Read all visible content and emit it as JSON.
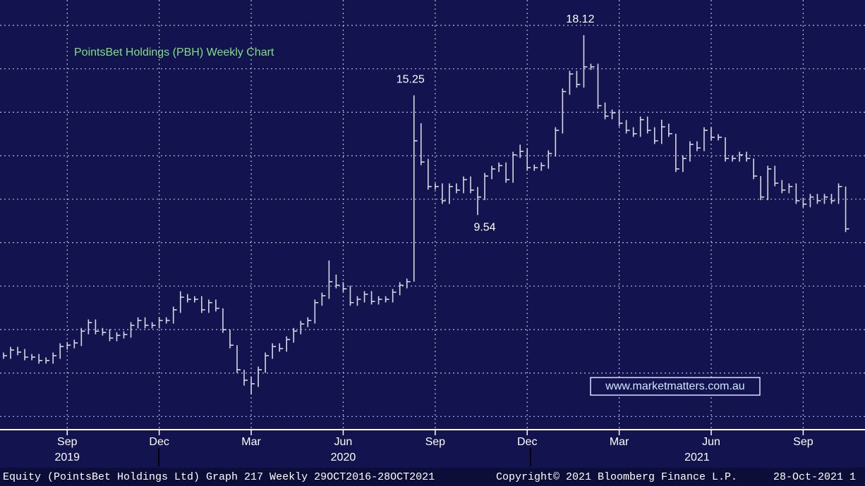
{
  "chart_data": {
    "type": "hlc",
    "title": "PointsBet Holdings (PBH) Weekly Chart",
    "watermark": "www.marketmatters.com.au",
    "categories": [
      null,
      null,
      null,
      null,
      null,
      null,
      null,
      null,
      null,
      "Sep",
      null,
      null,
      null,
      null,
      null,
      null,
      null,
      null,
      null,
      null,
      null,
      null,
      "Dec",
      null,
      null,
      null,
      null,
      null,
      null,
      null,
      null,
      null,
      null,
      null,
      null,
      "Mar",
      null,
      null,
      null,
      null,
      null,
      null,
      null,
      null,
      null,
      null,
      null,
      null,
      "Jun",
      null,
      null,
      null,
      null,
      null,
      null,
      null,
      null,
      null,
      null,
      null,
      null,
      "Sep",
      null,
      null,
      null,
      null,
      null,
      null,
      null,
      null,
      null,
      null,
      null,
      null,
      "Dec",
      null,
      null,
      null,
      null,
      null,
      null,
      null,
      null,
      null,
      null,
      null,
      null,
      "Mar",
      null,
      null,
      null,
      null,
      null,
      null,
      null,
      null,
      null,
      null,
      null,
      null,
      "Jun",
      null,
      null,
      null,
      null,
      null,
      null,
      null,
      null,
      null,
      null,
      null,
      null,
      "Sep",
      null,
      null,
      null,
      null,
      null,
      null
    ],
    "year_ticks": [
      {
        "value": 9,
        "label": "2019"
      },
      {
        "value": 48,
        "label": "2020"
      },
      {
        "value": 98,
        "label": "2021"
      }
    ],
    "high": [
      2.98,
      3.25,
      3.25,
      3.15,
      2.91,
      2.91,
      2.75,
      2.98,
      3.42,
      3.48,
      3.59,
      4.15,
      4.56,
      4.56,
      4.15,
      4.09,
      3.95,
      3.99,
      4.43,
      4.66,
      4.66,
      4.43,
      4.66,
      4.66,
      5.17,
      5.9,
      5.77,
      5.67,
      5.67,
      5.51,
      5.51,
      5.09,
      4.07,
      3.33,
      2.16,
      1.81,
      2.31,
      2.98,
      3.42,
      3.42,
      3.75,
      4.15,
      4.49,
      4.66,
      5.51,
      5.84,
      7.37,
      6.7,
      6.34,
      6.17,
      5.67,
      5.91,
      5.91,
      5.67,
      5.67,
      6.01,
      6.34,
      6.51,
      15.25,
      13.92,
      12.22,
      11.05,
      11.05,
      11.05,
      11.05,
      11.38,
      11.38,
      10.88,
      11.55,
      11.89,
      12.05,
      12.05,
      12.56,
      12.9,
      12.73,
      11.95,
      12.05,
      12.63,
      13.73,
      15.58,
      16.42,
      16.42,
      18.12,
      16.76,
      16.76,
      14.91,
      14.57,
      14.57,
      14.07,
      13.73,
      14.24,
      14.24,
      13.73,
      14.09,
      13.9,
      13.42,
      12.39,
      13.06,
      13.06,
      13.73,
      13.73,
      13.4,
      13.25,
      12.39,
      12.56,
      12.56,
      12.24,
      11.4,
      11.89,
      11.89,
      11.21,
      11.05,
      11.05,
      10.37,
      10.55,
      10.55,
      10.55,
      10.55,
      11.05,
      10.9
    ],
    "low": [
      2.68,
      2.68,
      2.85,
      2.61,
      2.61,
      2.45,
      2.45,
      2.45,
      2.68,
      3.12,
      3.18,
      3.29,
      3.85,
      3.85,
      3.79,
      3.52,
      3.52,
      3.65,
      3.69,
      4.13,
      4.13,
      4.13,
      4.13,
      4.36,
      4.36,
      4.87,
      5.37,
      5.37,
      4.87,
      4.87,
      4.94,
      3.92,
      3.18,
      2.01,
      1.4,
      0.98,
      1.34,
      2.01,
      2.68,
      3.02,
      3.02,
      3.45,
      3.85,
      4.19,
      4.36,
      5.21,
      5.54,
      6.04,
      5.87,
      5.21,
      5.21,
      5.37,
      5.27,
      5.27,
      5.37,
      5.37,
      5.71,
      6.04,
      6.36,
      11.92,
      10.75,
      10.75,
      10.07,
      10.07,
      10.58,
      10.58,
      10.58,
      9.54,
      10.25,
      11.25,
      11.59,
      11.08,
      11.08,
      12.26,
      11.65,
      11.65,
      11.65,
      11.75,
      12.33,
      13.43,
      15.28,
      15.62,
      15.62,
      16.46,
      14.61,
      14.11,
      14.11,
      13.77,
      13.43,
      13.27,
      13.27,
      13.43,
      12.93,
      12.93,
      13.27,
      11.59,
      11.59,
      12.09,
      12.59,
      12.59,
      13.1,
      13.1,
      12.09,
      12.09,
      12.09,
      12.09,
      11.25,
      10.25,
      10.25,
      10.91,
      10.58,
      10.58,
      10.07,
      9.91,
      9.91,
      10.07,
      10.07,
      10.07,
      10.07,
      8.73
    ],
    "close": [
      2.83,
      3.1,
      3.0,
      2.76,
      2.76,
      2.6,
      2.6,
      2.83,
      3.27,
      3.33,
      3.44,
      4.0,
      4.41,
      4.0,
      3.94,
      3.67,
      3.8,
      3.84,
      4.28,
      4.51,
      4.28,
      4.28,
      4.51,
      4.51,
      5.02,
      5.62,
      5.52,
      5.52,
      5.02,
      5.36,
      5.09,
      4.07,
      3.33,
      2.16,
      1.66,
      1.49,
      2.16,
      2.83,
      3.27,
      3.17,
      3.6,
      4.0,
      4.34,
      4.51,
      5.36,
      5.69,
      6.36,
      6.19,
      6.02,
      5.36,
      5.52,
      5.76,
      5.42,
      5.52,
      5.52,
      5.86,
      6.19,
      6.36,
      13.08,
      12.07,
      10.9,
      10.9,
      10.22,
      10.9,
      10.73,
      11.23,
      10.73,
      10.4,
      11.4,
      11.74,
      11.9,
      11.23,
      12.41,
      12.58,
      11.8,
      11.8,
      11.9,
      12.48,
      13.58,
      15.43,
      16.27,
      15.77,
      16.61,
      16.61,
      14.76,
      14.26,
      14.42,
      13.92,
      13.58,
      13.42,
      14.09,
      13.58,
      13.08,
      13.75,
      13.42,
      11.74,
      12.24,
      12.91,
      12.74,
      13.58,
      13.25,
      13.25,
      12.24,
      12.24,
      12.41,
      12.24,
      11.4,
      10.4,
      11.74,
      11.06,
      10.73,
      10.9,
      10.22,
      10.06,
      10.4,
      10.22,
      10.4,
      10.22,
      10.9,
      8.88
    ],
    "annotate": {
      "high": [
        58,
        82
      ],
      "low": [
        67
      ]
    },
    "ylim": [
      -0.7,
      19.8
    ],
    "color": "#d8d8e0",
    "grid": true
  },
  "footer": {
    "security": "Equity (PointsBet Holdings Ltd) Graph 217  Weekly 29OCT2016-28OCT2021",
    "copyright": "Copyright© 2021 Bloomberg Finance L.P.",
    "date": "28-Oct-2021 1"
  }
}
